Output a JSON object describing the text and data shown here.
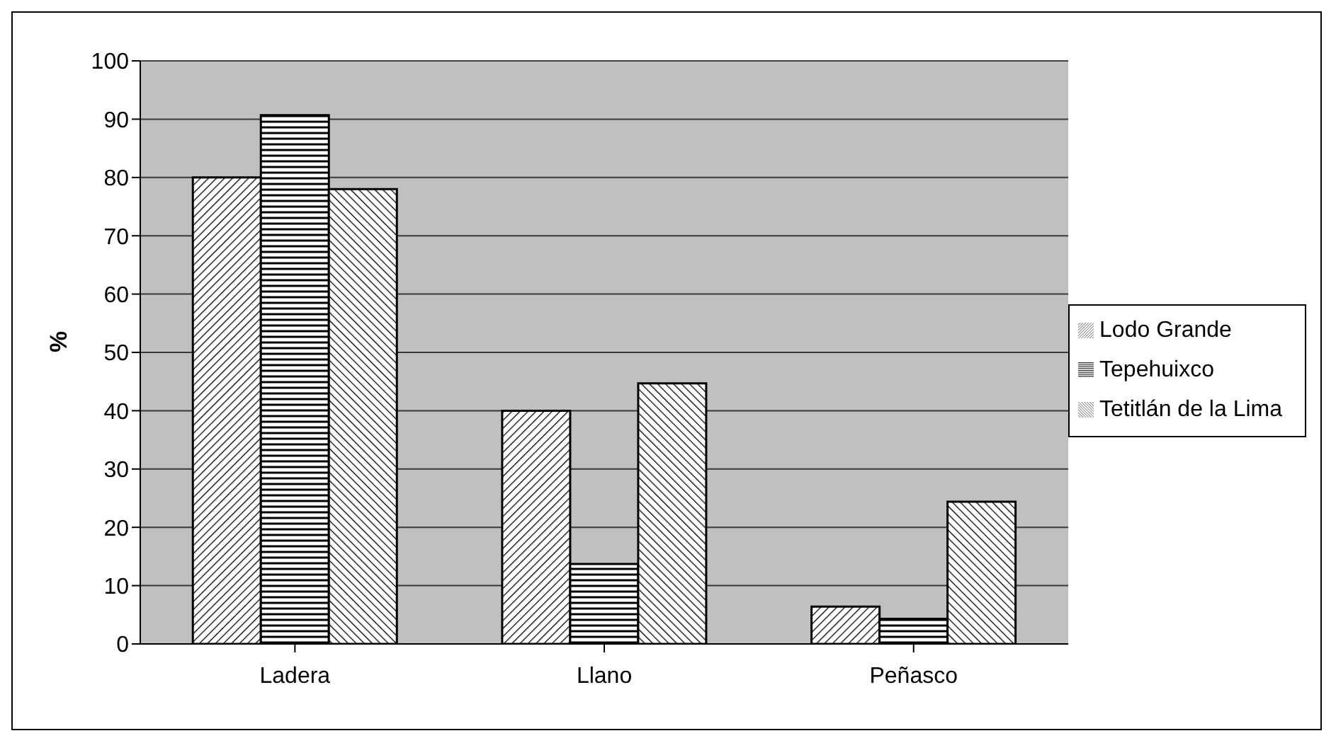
{
  "chart_data": {
    "type": "bar",
    "ylabel": "%",
    "categories": [
      "Ladera",
      "Llano",
      "Peñasco"
    ],
    "series": [
      {
        "name": "Lodo Grande",
        "color": "#000000",
        "values": [
          80,
          40,
          6.4
        ]
      },
      {
        "name": "Tepehuixco",
        "color": "#000000",
        "values": [
          90.7,
          13.7,
          4.3
        ]
      },
      {
        "name": "Tetitlán de la Lima",
        "color": "#000000",
        "values": [
          78,
          44.7,
          24.4
        ]
      }
    ],
    "ylim": [
      0,
      100
    ],
    "yticks": [
      0,
      10,
      20,
      30,
      40,
      50,
      60,
      70,
      80,
      90,
      100
    ],
    "grid": "y",
    "legend": "right"
  }
}
